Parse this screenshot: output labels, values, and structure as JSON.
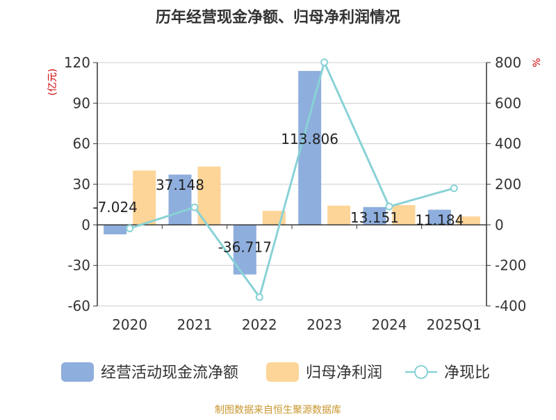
{
  "chart_data": {
    "type": "bar",
    "title": "历年经营现金净额、归母净利润情况",
    "left_axis_unit": "(亿元)",
    "right_axis_unit": "%",
    "categories": [
      "2020",
      "2021",
      "2022",
      "2023",
      "2024",
      "2025Q1"
    ],
    "ylim_left": [
      -60,
      120
    ],
    "yticks_left": [
      -60,
      -30,
      0,
      30,
      60,
      90,
      120
    ],
    "ylim_right": [
      -400,
      800
    ],
    "yticks_right": [
      -400,
      -200,
      0,
      200,
      400,
      600,
      800
    ],
    "grid": true,
    "legend_position": "bottom",
    "series": [
      {
        "name": "经营活动现金流净额",
        "type": "bar",
        "axis": "left",
        "color": "#8eaedd",
        "values": [
          -7.024,
          37.148,
          -36.717,
          113.806,
          13.151,
          11.184
        ],
        "labels": [
          "-7.024",
          "37.148",
          "-36.717",
          "113.806",
          "13.151",
          "11.184"
        ]
      },
      {
        "name": "归母净利润",
        "type": "bar",
        "axis": "left",
        "color": "#fdd598",
        "values": [
          40.2,
          43.1,
          10.3,
          14.2,
          14.6,
          6.2
        ]
      },
      {
        "name": "净现比",
        "type": "line",
        "axis": "right",
        "color": "#88d2d6",
        "values": [
          -17.5,
          86.2,
          -356.5,
          801.4,
          90.1,
          180.4
        ]
      }
    ],
    "source": "制图数据来自恒生聚源数据库"
  }
}
